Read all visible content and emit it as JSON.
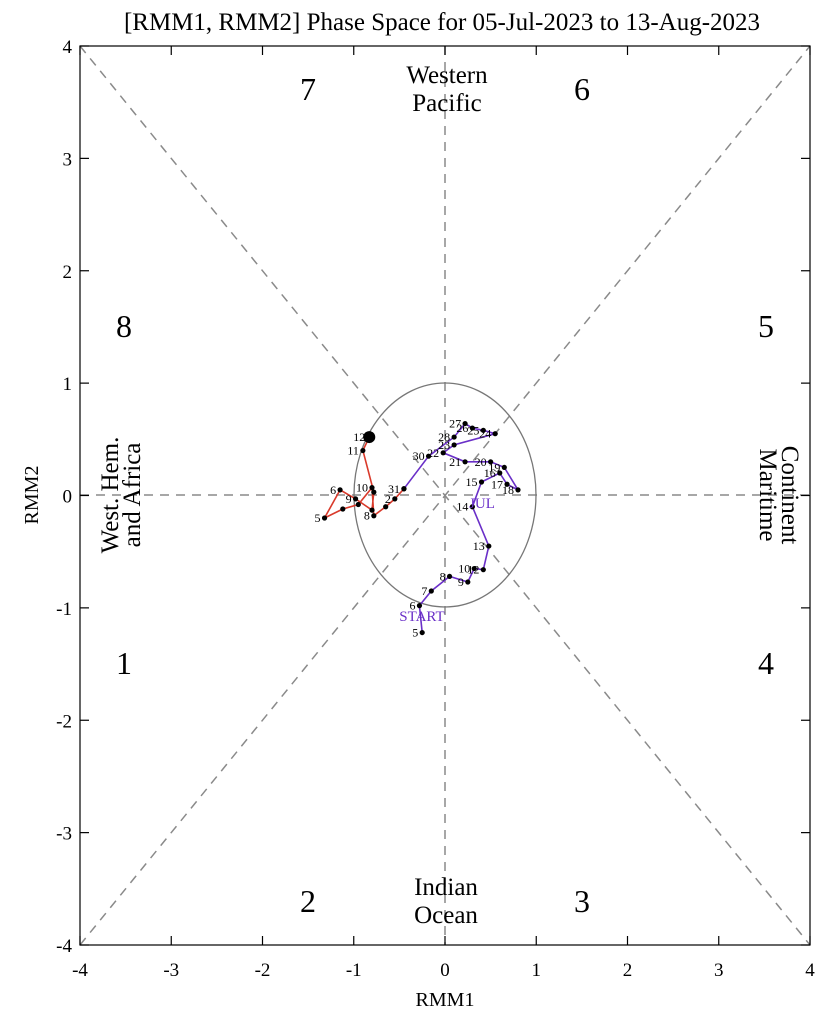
{
  "chart_data": {
    "type": "line",
    "title": "[RMM1, RMM2] Phase Space for 05-Jul-2023 to 13-Aug-2023",
    "xlabel": "RMM1",
    "ylabel": "RMM2",
    "xlim": [
      -4,
      4
    ],
    "ylim": [
      -4,
      4
    ],
    "xticks": [
      "-4",
      "-3",
      "-2",
      "-1",
      "0",
      "1",
      "2",
      "3",
      "4"
    ],
    "yticks": [
      "-4",
      "-3",
      "-2",
      "-1",
      "0",
      "1",
      "2",
      "3",
      "4"
    ],
    "grid": "dashed diagonal and axis lines",
    "phase_labels": [
      "7",
      "6",
      "8",
      "5",
      "1",
      "4",
      "2",
      "3"
    ],
    "regions": {
      "top": [
        "Western",
        "Pacific"
      ],
      "bottom": [
        "Indian",
        "Ocean"
      ],
      "left": [
        "West. Hem.",
        "and Africa"
      ],
      "right": [
        "Maritime",
        "Continent"
      ]
    },
    "start_label": "START",
    "month_marker": "JUL",
    "series": [
      {
        "color": "#6a2fc8",
        "points": [
          {
            "x": -0.25,
            "y": -1.22,
            "label": "5"
          },
          {
            "x": -0.28,
            "y": -0.98,
            "label": "6"
          },
          {
            "x": -0.15,
            "y": -0.85,
            "label": "7"
          },
          {
            "x": 0.05,
            "y": -0.72,
            "label": "8"
          },
          {
            "x": 0.25,
            "y": -0.77,
            "label": "9"
          },
          {
            "x": 0.32,
            "y": -0.65,
            "label": "10"
          },
          {
            "x": 0.42,
            "y": -0.66,
            "label": "12"
          },
          {
            "x": 0.48,
            "y": -0.45,
            "label": "13"
          },
          {
            "x": 0.3,
            "y": -0.1,
            "label": "14"
          },
          {
            "x": 0.4,
            "y": 0.12,
            "label": "15"
          },
          {
            "x": 0.6,
            "y": 0.2,
            "label": "16"
          },
          {
            "x": 0.68,
            "y": 0.1,
            "label": "17"
          },
          {
            "x": 0.8,
            "y": 0.05,
            "label": "18"
          },
          {
            "x": 0.65,
            "y": 0.25,
            "label": "19"
          },
          {
            "x": 0.5,
            "y": 0.3,
            "label": "20"
          },
          {
            "x": 0.22,
            "y": 0.3,
            "label": "21"
          },
          {
            "x": -0.02,
            "y": 0.38,
            "label": "22"
          },
          {
            "x": 0.1,
            "y": 0.45,
            "label": "23"
          },
          {
            "x": 0.55,
            "y": 0.55,
            "label": "24"
          },
          {
            "x": 0.42,
            "y": 0.58,
            "label": "25"
          },
          {
            "x": 0.3,
            "y": 0.6,
            "label": "26"
          },
          {
            "x": 0.22,
            "y": 0.64,
            "label": "27"
          },
          {
            "x": 0.1,
            "y": 0.52,
            "label": "28"
          },
          {
            "x": -0.18,
            "y": 0.35,
            "label": "30"
          },
          {
            "x": -0.45,
            "y": 0.06,
            "label": "31"
          }
        ]
      },
      {
        "color": "#d93a2b",
        "points": [
          {
            "x": -0.45,
            "y": 0.06,
            "label": ""
          },
          {
            "x": -0.55,
            "y": -0.03,
            "label": "2"
          },
          {
            "x": -0.65,
            "y": -0.1,
            "label": ""
          },
          {
            "x": -0.78,
            "y": -0.18,
            "label": "8"
          },
          {
            "x": -0.8,
            "y": 0.07,
            "label": "10"
          },
          {
            "x": -0.95,
            "y": -0.08,
            "label": ""
          },
          {
            "x": -1.12,
            "y": -0.12,
            "label": ""
          },
          {
            "x": -1.32,
            "y": -0.2,
            "label": "5"
          },
          {
            "x": -1.15,
            "y": 0.05,
            "label": "6"
          },
          {
            "x": -0.98,
            "y": -0.03,
            "label": "9"
          },
          {
            "x": -0.8,
            "y": -0.13,
            "label": ""
          },
          {
            "x": -0.78,
            "y": 0.03,
            "label": ""
          },
          {
            "x": -0.9,
            "y": 0.4,
            "label": "11"
          },
          {
            "x": -0.83,
            "y": 0.52,
            "label": "12"
          }
        ]
      }
    ]
  }
}
